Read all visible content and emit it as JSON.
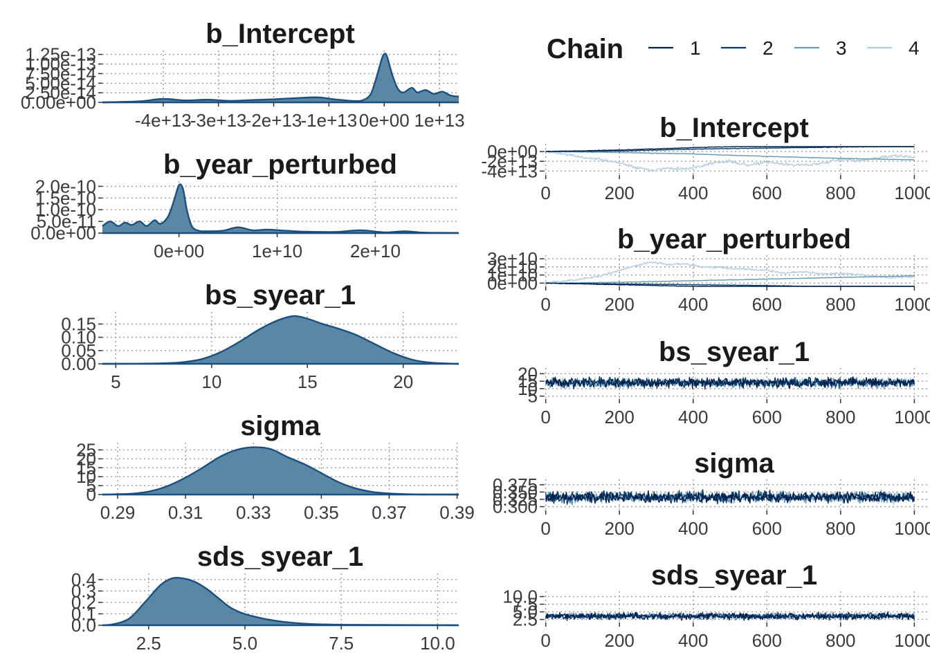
{
  "colors": {
    "density_fill": "#5a87a3",
    "density_line": "#1b4f80",
    "chain_1": "#011f4b",
    "chain_2": "#03396c",
    "chain_3": "#6497b1",
    "chain_4": "#b3cde0"
  },
  "legend": {
    "title": "Chain",
    "items": [
      {
        "label": "1",
        "color": "#011f4b"
      },
      {
        "label": "2",
        "color": "#03396c"
      },
      {
        "label": "3",
        "color": "#6497b1"
      },
      {
        "label": "4",
        "color": "#b3cde0"
      }
    ]
  },
  "chart_data": [
    {
      "type": "area",
      "title": "b_Intercept",
      "xlim": [
        -51000000000000.0,
        13500000000000.0
      ],
      "ylim": [
        0,
        1.28e-13
      ],
      "xticks": [
        -40000000000000.0,
        -30000000000000.0,
        -20000000000000.0,
        -10000000000000.0,
        0,
        10000000000000.0
      ],
      "xtick_labels": [
        "-4e+13",
        "-3e+13",
        "-2e+13",
        "-1e+13",
        "0e+00",
        "1e+13"
      ],
      "yticks": [
        0,
        2.5e-14,
        5e-14,
        7.5e-14,
        1e-13,
        1.25e-13
      ],
      "ytick_labels": [
        "0.00e+00",
        "2.50e-14",
        "5.00e-14",
        "7.50e-14",
        "1.00e-13",
        "1.25e-13"
      ],
      "x": [
        -51000000000000.0,
        -48000000000000.0,
        -44000000000000.0,
        -40000000000000.0,
        -36000000000000.0,
        -32000000000000.0,
        -28000000000000.0,
        -24000000000000.0,
        -20000000000000.0,
        -16000000000000.0,
        -12000000000000.0,
        -9000000000000.0,
        -6000000000000.0,
        -4000000000000.0,
        -2500000000000.0,
        -1500000000000.0,
        -500000000000.0,
        0,
        500000000000.0,
        1500000000000.0,
        2500000000000.0,
        3500000000000.0,
        5000000000000.0,
        6000000000000.0,
        7500000000000.0,
        9000000000000.0,
        10500000000000.0,
        12000000000000.0,
        13500000000000.0
      ],
      "y": [
        0,
        1e-15,
        3e-15,
        9e-15,
        5e-15,
        7e-15,
        4e-15,
        6e-15,
        8e-15,
        1.1e-14,
        1.3e-14,
        8e-15,
        4e-15,
        5e-15,
        2e-14,
        6e-14,
        1.1e-13,
        1.26e-13,
        1.2e-13,
        7e-14,
        3.5e-14,
        2.6e-14,
        3.8e-14,
        2.6e-14,
        3.2e-14,
        2.2e-14,
        2.8e-14,
        1.8e-14,
        1.5e-14
      ]
    },
    {
      "type": "area",
      "title": "b_year_perturbed",
      "xlim": [
        -7800000000.0,
        28500000000.0
      ],
      "ylim": [
        0,
        2.1e-10
      ],
      "xticks": [
        0,
        10000000000.0,
        20000000000.0
      ],
      "xtick_labels": [
        "0e+00",
        "1e+10",
        "2e+10"
      ],
      "yticks": [
        0,
        5e-11,
        1e-10,
        1.5e-10,
        2e-10
      ],
      "ytick_labels": [
        "0.0e+00",
        "5.0e-11",
        "1.0e-10",
        "1.5e-10",
        "2.0e-10"
      ],
      "x": [
        -7800000000.0,
        -7000000000.0,
        -6200000000.0,
        -5500000000.0,
        -4800000000.0,
        -4000000000.0,
        -3300000000.0,
        -2500000000.0,
        -2000000000.0,
        -1500000000.0,
        -1000000000.0,
        -500000000.0,
        0,
        400000000.0,
        800000000.0,
        1300000000.0,
        2000000000.0,
        3000000000.0,
        4500000000.0,
        6000000000.0,
        7500000000.0,
        9000000000.0,
        11000000000.0,
        13000000000.0,
        16000000000.0,
        18500000000.0,
        21000000000.0,
        23000000000.0,
        25000000000.0,
        28500000000.0
      ],
      "y": [
        3e-11,
        5e-11,
        3e-11,
        4.5e-11,
        3.5e-11,
        5e-11,
        3e-11,
        5.5e-11,
        4e-11,
        5e-11,
        8e-11,
        1.4e-10,
        2.05e-10,
        1.9e-10,
        1e-10,
        3e-11,
        1e-11,
        8e-12,
        1e-11,
        2.5e-11,
        1.2e-11,
        1.5e-11,
        1e-11,
        6e-12,
        5e-12,
        1.2e-11,
        3e-12,
        8e-12,
        2e-12,
        1e-12
      ]
    },
    {
      "type": "area",
      "title": "bs_syear_1",
      "xlim": [
        4.3,
        22.9
      ],
      "ylim": [
        0,
        0.185
      ],
      "xticks": [
        5,
        10,
        15,
        20
      ],
      "xtick_labels": [
        "5",
        "10",
        "15",
        "20"
      ],
      "yticks": [
        0,
        0.05,
        0.1,
        0.15
      ],
      "ytick_labels": [
        "0.00",
        "0.05",
        "0.10",
        "0.15"
      ],
      "x": [
        4.3,
        6,
        7.5,
        8.5,
        9.5,
        10.5,
        11.5,
        12.5,
        13.5,
        14.3,
        15,
        15.8,
        16.5,
        17.5,
        18.5,
        19.5,
        20.5,
        21.5,
        22.9
      ],
      "y": [
        0,
        0.0005,
        0.002,
        0.006,
        0.018,
        0.045,
        0.085,
        0.13,
        0.165,
        0.18,
        0.17,
        0.15,
        0.135,
        0.11,
        0.075,
        0.04,
        0.015,
        0.004,
        0
      ]
    },
    {
      "type": "area",
      "title": "sigma",
      "xlim": [
        0.2855,
        0.3905
      ],
      "ylim": [
        0,
        27.5
      ],
      "xticks": [
        0.29,
        0.31,
        0.33,
        0.35,
        0.37,
        0.39
      ],
      "xtick_labels": [
        "0.29",
        "0.31",
        "0.33",
        "0.35",
        "0.37",
        "0.39"
      ],
      "yticks": [
        0,
        5,
        10,
        15,
        20,
        25
      ],
      "ytick_labels": [
        "0",
        "5",
        "10",
        "15",
        "20",
        "25"
      ],
      "x": [
        0.2855,
        0.29,
        0.295,
        0.3,
        0.305,
        0.31,
        0.315,
        0.32,
        0.325,
        0.33,
        0.335,
        0.34,
        0.345,
        0.35,
        0.355,
        0.36,
        0.365,
        0.37,
        0.375,
        0.38,
        0.3905
      ],
      "y": [
        0,
        0.2,
        0.6,
        2,
        5,
        9.5,
        15,
        21,
        25,
        26.5,
        25.5,
        21,
        17,
        12,
        7,
        3.5,
        1.5,
        0.6,
        0.2,
        0.05,
        0
      ]
    },
    {
      "type": "area",
      "title": "sds_syear_1",
      "xlim": [
        1.3,
        10.55
      ],
      "ylim": [
        0,
        0.43
      ],
      "xticks": [
        2.5,
        5.0,
        7.5,
        10.0
      ],
      "xtick_labels": [
        "2.5",
        "5.0",
        "7.5",
        "10.0"
      ],
      "yticks": [
        0,
        0.1,
        0.2,
        0.3,
        0.4
      ],
      "ytick_labels": [
        "0.0",
        "0.1",
        "0.2",
        "0.3",
        "0.4"
      ],
      "x": [
        1.3,
        1.6,
        2,
        2.4,
        2.8,
        3.1,
        3.4,
        3.7,
        4,
        4.3,
        4.6,
        4.9,
        5.2,
        5.6,
        6,
        6.5,
        7,
        7.5,
        8.5,
        9.5,
        10.55
      ],
      "y": [
        0,
        0.01,
        0.06,
        0.2,
        0.35,
        0.41,
        0.41,
        0.38,
        0.32,
        0.24,
        0.16,
        0.11,
        0.08,
        0.05,
        0.03,
        0.015,
        0.008,
        0.005,
        0.003,
        0.002,
        0
      ]
    },
    {
      "type": "line",
      "title": "b_Intercept",
      "xlim": [
        -5,
        1035
      ],
      "ylim": [
        -48000000000000.0,
        10000000000000.0
      ],
      "xticks": [
        0,
        200,
        400,
        600,
        800,
        1000
      ],
      "xtick_labels": [
        "0",
        "200",
        "400",
        "600",
        "800",
        "1000"
      ],
      "yticks": [
        0,
        -20000000000000.0,
        -40000000000000.0
      ],
      "ytick_labels": [
        "0e+00",
        "-2e+13",
        "-4e+13"
      ],
      "seed": 11,
      "series": [
        {
          "name": "1",
          "x": [
            0,
            200,
            400,
            600,
            800,
            1000
          ],
          "y": [
            0,
            3000000000000.0,
            8000000000000.0,
            12000000000000.0,
            16000000000000.0,
            19000000000000.0
          ],
          "noise": 500000000000.0
        },
        {
          "name": "2",
          "x": [
            0,
            200,
            400,
            600,
            800,
            1000
          ],
          "y": [
            0,
            1000000000000.0,
            5000000000000.0,
            7000000000000.0,
            9000000000000.0,
            11000000000000.0
          ],
          "noise": 500000000000.0
        },
        {
          "name": "3",
          "x": [
            0,
            200,
            400,
            600,
            800,
            1000
          ],
          "y": [
            0,
            -2000000000000.0,
            -5000000000000.0,
            -10000000000000.0,
            -14000000000000.0,
            -17000000000000.0
          ],
          "noise": 500000000000.0
        },
        {
          "name": "4",
          "x": [
            0,
            50,
            100,
            150,
            200,
            250,
            290,
            330,
            380,
            420,
            450,
            500,
            550,
            600,
            650,
            700,
            750,
            800,
            850,
            900,
            950,
            1000
          ],
          "y": [
            0,
            -5000000000000.0,
            -12000000000000.0,
            -16000000000000.0,
            -23000000000000.0,
            -33000000000000.0,
            -38000000000000.0,
            -34000000000000.0,
            -35000000000000.0,
            -30000000000000.0,
            -24000000000000.0,
            -20000000000000.0,
            -28000000000000.0,
            -22000000000000.0,
            -26000000000000.0,
            -28000000000000.0,
            -24000000000000.0,
            -16000000000000.0,
            -19000000000000.0,
            -13000000000000.0,
            -9000000000000.0,
            -12000000000000.0
          ],
          "noise": 2500000000000.0
        }
      ]
    },
    {
      "type": "line",
      "title": "b_year_perturbed",
      "xlim": [
        -5,
        1035
      ],
      "ylim": [
        -4000000000.0,
        31000000000.0
      ],
      "xticks": [
        0,
        200,
        400,
        600,
        800,
        1000
      ],
      "xtick_labels": [
        "0",
        "200",
        "400",
        "600",
        "800",
        "1000"
      ],
      "yticks": [
        0,
        10000000000.0,
        20000000000.0,
        30000000000.0
      ],
      "ytick_labels": [
        "0e+00",
        "1e+10",
        "2e+10",
        "3e+10"
      ],
      "seed": 23,
      "series": [
        {
          "name": "1",
          "x": [
            0,
            200,
            400,
            600,
            800,
            1000
          ],
          "y": [
            0,
            -2000000000.0,
            -4000000000.0,
            -7000000000.0,
            -9000000000.0,
            -12000000000.0
          ],
          "noise": 300000000.0
        },
        {
          "name": "2",
          "x": [
            0,
            200,
            400,
            600,
            800,
            1000
          ],
          "y": [
            0,
            -1000000000.0,
            -2000000000.0,
            -3000000000.0,
            -5000000000.0,
            -6000000000.0
          ],
          "noise": 300000000.0
        },
        {
          "name": "3",
          "x": [
            0,
            200,
            400,
            600,
            800,
            1000
          ],
          "y": [
            0,
            1000000000.0,
            3000000000.0,
            5000000000.0,
            7000000000.0,
            9000000000.0
          ],
          "noise": 300000000.0
        },
        {
          "name": "4",
          "x": [
            0,
            80,
            150,
            200,
            250,
            290,
            330,
            380,
            420,
            480,
            540,
            600,
            650,
            700,
            760,
            820,
            880,
            940,
            1000
          ],
          "y": [
            0,
            4000000000.0,
            9000000000.0,
            16000000000.0,
            22000000000.0,
            26000000000.0,
            23000000000.0,
            24000000000.0,
            20000000000.0,
            19000000000.0,
            17000000000.0,
            16000000000.0,
            12000000000.0,
            14000000000.0,
            11000000000.0,
            12000000000.0,
            9000000000.0,
            7000000000.0,
            8000000000.0
          ],
          "noise": 1200000000.0
        }
      ]
    },
    {
      "type": "line",
      "title": "bs_syear_1",
      "xlim": [
        -5,
        1035
      ],
      "ylim": [
        3,
        22
      ],
      "xticks": [
        0,
        200,
        400,
        600,
        800,
        1000
      ],
      "xtick_labels": [
        "0",
        "200",
        "400",
        "600",
        "800",
        "1000"
      ],
      "yticks": [
        5,
        10,
        15,
        20
      ],
      "ytick_labels": [
        "5",
        "10",
        "15",
        "20"
      ],
      "seed": 37,
      "series": [
        {
          "name": "1",
          "x": [
            0,
            1000
          ],
          "y": [
            14,
            14
          ],
          "noise": 2.8
        },
        {
          "name": "2",
          "x": [
            0,
            1000
          ],
          "y": [
            14,
            14
          ],
          "noise": 2.8
        },
        {
          "name": "3",
          "x": [
            0,
            1000
          ],
          "y": [
            14,
            14
          ],
          "noise": 2.8
        },
        {
          "name": "4",
          "x": [
            0,
            1000
          ],
          "y": [
            14,
            14
          ],
          "noise": 2.8
        }
      ]
    },
    {
      "type": "line",
      "title": "sigma",
      "xlim": [
        -5,
        1035
      ],
      "ylim": [
        0.287,
        0.384
      ],
      "xticks": [
        0,
        200,
        400,
        600,
        800,
        1000
      ],
      "xtick_labels": [
        "0",
        "200",
        "400",
        "600",
        "800",
        "1000"
      ],
      "yticks": [
        0.3,
        0.325,
        0.35,
        0.375
      ],
      "ytick_labels": [
        "0.300",
        "0.325",
        "0.350",
        "0.375"
      ],
      "seed": 53,
      "series": [
        {
          "name": "1",
          "x": [
            0,
            1000
          ],
          "y": [
            0.332,
            0.332
          ],
          "noise": 0.016
        },
        {
          "name": "2",
          "x": [
            0,
            1000
          ],
          "y": [
            0.332,
            0.332
          ],
          "noise": 0.016
        },
        {
          "name": "3",
          "x": [
            0,
            1000
          ],
          "y": [
            0.332,
            0.332
          ],
          "noise": 0.016
        },
        {
          "name": "4",
          "x": [
            0,
            1000
          ],
          "y": [
            0.332,
            0.332
          ],
          "noise": 0.016
        }
      ]
    },
    {
      "type": "line",
      "title": "sds_syear_1",
      "xlim": [
        -5,
        1035
      ],
      "ylim": [
        1.5,
        10.8
      ],
      "xticks": [
        0,
        200,
        400,
        600,
        800,
        1000
      ],
      "xtick_labels": [
        "0",
        "200",
        "400",
        "600",
        "800",
        "1000"
      ],
      "yticks": [
        2.5,
        5,
        7.5,
        10
      ],
      "ytick_labels": [
        "2.5",
        "5.0",
        "7.5",
        "10.0"
      ],
      "seed": 71,
      "series": [
        {
          "name": "1",
          "x": [
            0,
            1000
          ],
          "y": [
            3.6,
            3.6
          ],
          "noise": 0.9
        },
        {
          "name": "2",
          "x": [
            0,
            1000
          ],
          "y": [
            3.6,
            3.6
          ],
          "noise": 0.9
        },
        {
          "name": "3",
          "x": [
            0,
            1000
          ],
          "y": [
            3.6,
            3.6
          ],
          "noise": 0.9
        },
        {
          "name": "4",
          "x": [
            0,
            1000
          ],
          "y": [
            3.6,
            3.6
          ],
          "noise": 0.9
        }
      ]
    }
  ]
}
